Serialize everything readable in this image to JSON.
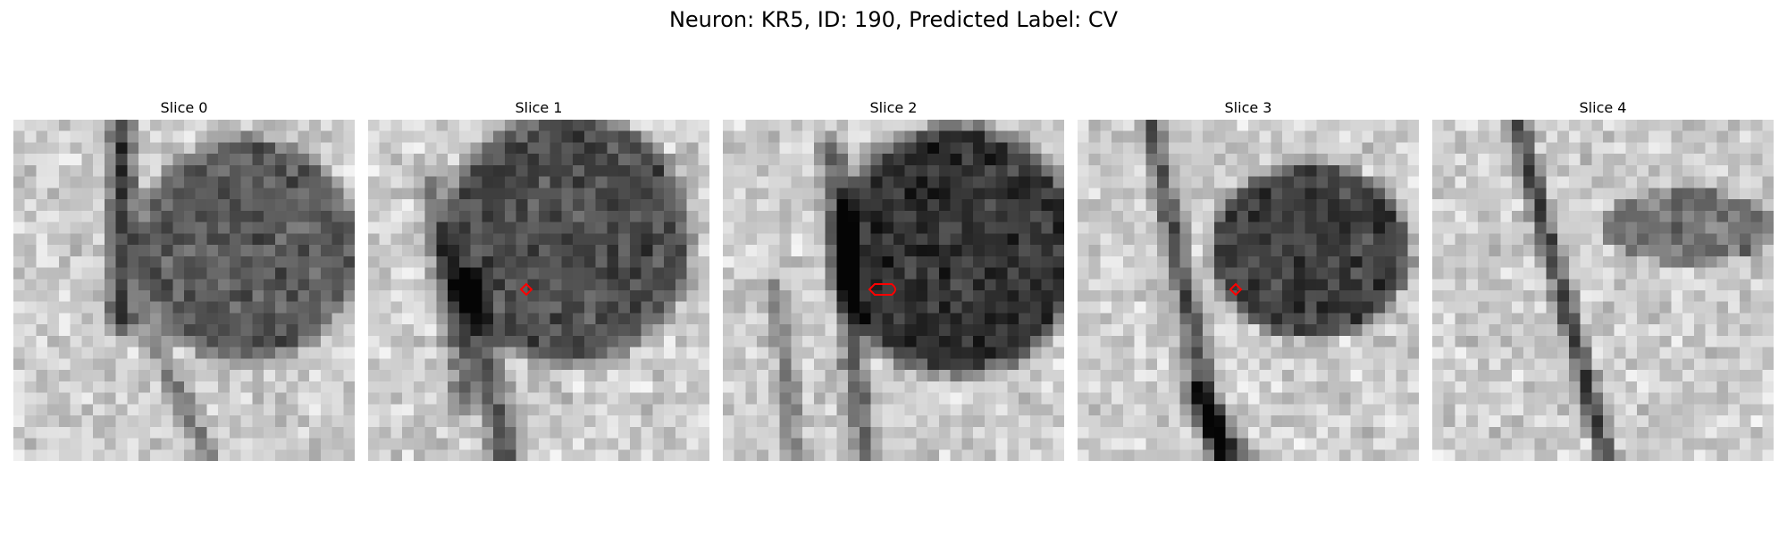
{
  "figure": {
    "title": "Neuron: KR5, ID: 190, Predicted Label: CV"
  },
  "marker_color": "#ff0000",
  "slices": [
    {
      "title": "Slice 0",
      "marker": "none"
    },
    {
      "title": "Slice 1",
      "marker": "diamond"
    },
    {
      "title": "Slice 2",
      "marker": "ellipse"
    },
    {
      "title": "Slice 3",
      "marker": "diamond"
    },
    {
      "title": "Slice 4",
      "marker": "none"
    }
  ]
}
